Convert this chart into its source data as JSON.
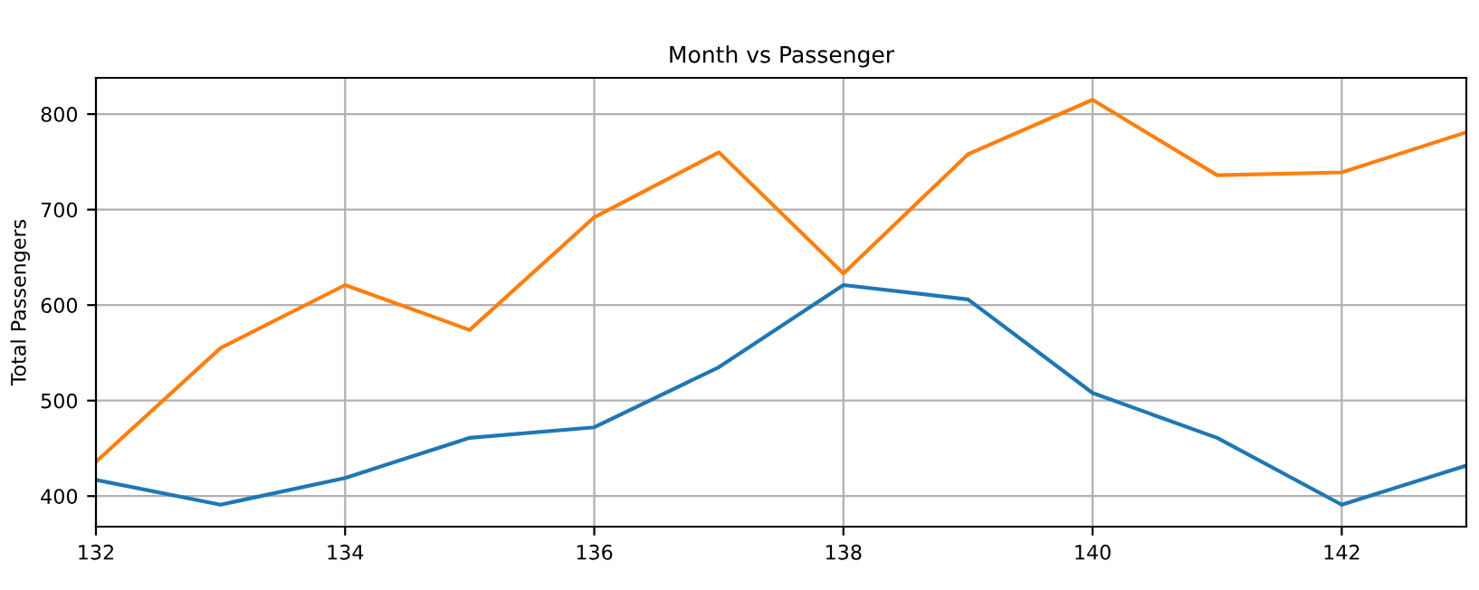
{
  "chart_data": {
    "type": "line",
    "title": "Month vs Passenger",
    "ylabel": "Total Passengers",
    "x": [
      132,
      133,
      134,
      135,
      136,
      137,
      138,
      139,
      140,
      141,
      142,
      143
    ],
    "series": [
      {
        "color": "#1f77b4",
        "values": [
          417,
          391,
          419,
          461,
          472,
          535,
          621,
          606,
          508,
          461,
          391,
          432
        ]
      },
      {
        "color": "#ff7f0e",
        "values": [
          436,
          555,
          621,
          574,
          692,
          760,
          633,
          758,
          815,
          736,
          739,
          781
        ]
      }
    ],
    "xlim": [
      132,
      143
    ],
    "xticks": [
      132,
      134,
      136,
      138,
      140,
      142
    ],
    "ylim": [
      368,
      838
    ],
    "yticks": [
      400,
      500,
      600,
      700,
      800
    ],
    "grid": true,
    "marker": "none",
    "line_style": "solid"
  }
}
